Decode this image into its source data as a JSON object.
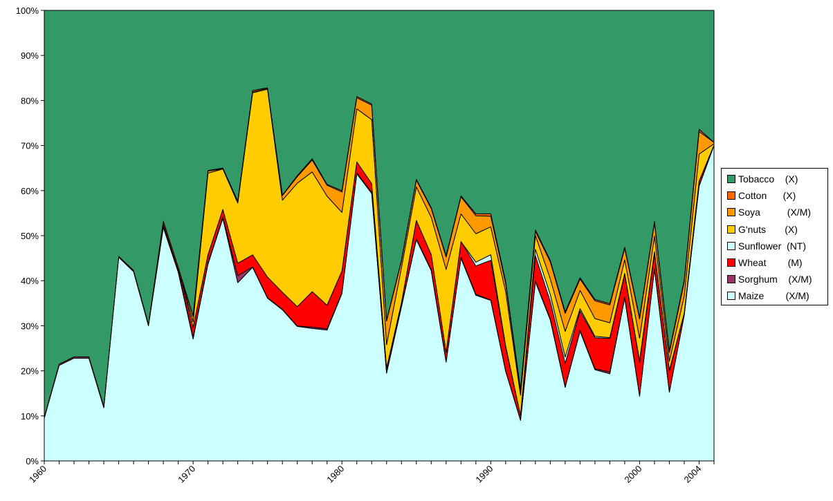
{
  "chart_data": {
    "type": "area",
    "stacked": "percent",
    "title": "",
    "xlabel": "",
    "ylabel": "",
    "ylim": [
      0,
      100
    ],
    "y_ticks": [
      "0%",
      "10%",
      "20%",
      "30%",
      "40%",
      "50%",
      "60%",
      "70%",
      "80%",
      "90%",
      "100%"
    ],
    "x_tick_labels": [
      {
        "year": 1960,
        "label": "1960"
      },
      {
        "year": 1970,
        "label": "1970"
      },
      {
        "year": 1980,
        "label": "1980"
      },
      {
        "year": 1990,
        "label": "1990"
      },
      {
        "year": 2000,
        "label": "2000"
      },
      {
        "year": 2004,
        "label": "2004"
      }
    ],
    "x": [
      1960,
      1961,
      1962,
      1963,
      1964,
      1965,
      1966,
      1967,
      1968,
      1969,
      1970,
      1971,
      1972,
      1973,
      1974,
      1975,
      1976,
      1977,
      1978,
      1979,
      1980,
      1981,
      1982,
      1983,
      1984,
      1985,
      1986,
      1987,
      1988,
      1989,
      1990,
      1991,
      1992,
      1993,
      1994,
      1995,
      1996,
      1997,
      1998,
      1999,
      2000,
      2001,
      2002,
      2003,
      2004,
      2005
    ],
    "series": [
      {
        "name": "Maize",
        "code": "(X/M)",
        "color": "#ccffff",
        "values": [
          9.5,
          21.2,
          22.8,
          22.8,
          11.8,
          45.2,
          42.0,
          30.0,
          51.8,
          41.8,
          22.0,
          43.5,
          54.0,
          38.5,
          41.8,
          35.5,
          32.8,
          30.5,
          31.0,
          30.0,
          38.5,
          65.0,
          46.0,
          20.5,
          33.0,
          49.5,
          43.5,
          21.5,
          47.5,
          35.0,
          34.5,
          19.0,
          9.0,
          42.5,
          31.5,
          14.3,
          28.5,
          20.5,
          19.5,
          36.0,
          14.4,
          43.5,
          15.3,
          31.0,
          61.0,
          70.0
        ]
      },
      {
        "name": "Sorghum",
        "code": "(X/M)",
        "color": "#993366",
        "values": [
          0.2,
          0.3,
          0.3,
          0.3,
          0.3,
          0.2,
          0.3,
          0.3,
          0.6,
          0.3,
          0.3,
          0.3,
          0.3,
          1.5,
          0.1,
          0.1,
          0.1,
          0.1,
          0.3,
          0.3,
          0.2,
          0.2,
          0.2,
          0.2,
          0.2,
          0.2,
          0.2,
          0.2,
          0.2,
          0.2,
          0.1,
          0.1,
          0.1,
          0.2,
          0.2,
          0.1,
          0.2,
          0.2,
          0.4,
          0.2,
          0.1,
          0.2,
          0.1,
          0.1,
          0.1,
          0.1
        ]
      },
      {
        "name": "Wheat",
        "code": "(M)",
        "color": "#ff0000",
        "values": [
          0.0,
          0.0,
          0.0,
          0.0,
          0.0,
          0.0,
          0.0,
          0.0,
          0.8,
          0.8,
          1.8,
          1.8,
          1.7,
          2.7,
          2.6,
          4.5,
          3.7,
          4.4,
          8.3,
          5.4,
          5.0,
          2.5,
          1.5,
          1.0,
          0.7,
          4.1,
          3.5,
          2.0,
          3.7,
          6.0,
          8.5,
          5.0,
          1.0,
          6.0,
          4.0,
          4.6,
          4.3,
          7.0,
          7.5,
          5.0,
          7.5,
          3.5,
          4.6,
          0.4,
          1.0,
          0.0
        ]
      },
      {
        "name": "Sunflower",
        "code": "(NT)",
        "color": "#ccffff",
        "values": [
          0.0,
          0.0,
          0.0,
          0.0,
          0.0,
          0.0,
          0.0,
          0.0,
          0.0,
          0.0,
          0.0,
          0.0,
          0.0,
          0.0,
          0.0,
          0.0,
          0.0,
          0.0,
          0.0,
          0.0,
          0.0,
          0.0,
          0.0,
          0.0,
          0.0,
          0.0,
          0.0,
          0.0,
          0.0,
          0.8,
          1.2,
          0.3,
          0.0,
          1.5,
          1.5,
          1.2,
          0.5,
          0.3,
          0.2,
          0.3,
          0.3,
          0.3,
          0.2,
          0.0,
          0.0,
          0.0
        ]
      },
      {
        "name": "G'nuts",
        "code": "(X)",
        "color": "#ffcc00",
        "values": [
          0.0,
          0.0,
          0.0,
          0.0,
          0.0,
          0.0,
          0.0,
          0.0,
          0.0,
          0.0,
          1.0,
          18.0,
          9.0,
          13.0,
          35.0,
          41.0,
          20.0,
          28.0,
          28.0,
          25.0,
          13.5,
          12.0,
          11.0,
          5.5,
          7.5,
          7.5,
          8.5,
          18.0,
          6.5,
          6.0,
          6.0,
          11.5,
          4.5,
          3.3,
          3.5,
          5.0,
          4.0,
          4.0,
          3.3,
          3.0,
          5.0,
          3.5,
          2.0,
          3.6,
          6.0,
          0.3
        ]
      },
      {
        "name": "Soya",
        "code": "(X/M)",
        "color": "#ff9900",
        "values": [
          0.0,
          0.0,
          0.0,
          0.0,
          0.0,
          0.0,
          0.0,
          0.0,
          0.0,
          0.0,
          1.0,
          0.5,
          0.0,
          0.2,
          0.2,
          0.2,
          1.0,
          1.5,
          2.8,
          2.5,
          4.7,
          2.5,
          2.5,
          5.5,
          1.4,
          1.5,
          2.0,
          2.7,
          4.0,
          3.8,
          2.3,
          1.7,
          1.0,
          1.0,
          3.8,
          3.5,
          2.5,
          4.0,
          4.0,
          2.5,
          4.3,
          3.0,
          2.0,
          3.0,
          5.0,
          0.3
        ]
      },
      {
        "name": "Cotton",
        "code": "(X)",
        "color": "#ff6600",
        "values": [
          0.0,
          0.0,
          0.0,
          0.0,
          0.0,
          0.0,
          0.0,
          0.0,
          0.0,
          0.0,
          0.1,
          0.1,
          0.2,
          0.2,
          0.3,
          0.1,
          0.1,
          0.2,
          0.3,
          0.2,
          0.3,
          0.3,
          0.2,
          0.2,
          0.2,
          0.2,
          0.2,
          0.3,
          0.2,
          0.4,
          0.5,
          0.4,
          0.3,
          0.3,
          0.3,
          0.3,
          0.3,
          0.3,
          0.3,
          0.3,
          0.3,
          0.3,
          0.3,
          0.4,
          0.5,
          0.0
        ]
      },
      {
        "name": "Tobacco",
        "code": "(X)",
        "color": "#339966",
        "values": [
          90.3,
          78.5,
          76.9,
          76.9,
          87.9,
          54.6,
          57.7,
          69.7,
          46.8,
          56.9,
          55.1,
          35.4,
          35.1,
          41.2,
          17.3,
          16.9,
          40.1,
          37.5,
          34.7,
          39.9,
          41.5,
          19.5,
          16.1,
          72.4,
          53.5,
          37.8,
          45.1,
          53.4,
          43.5,
          43.0,
          43.7,
          57.4,
          84.1,
          52.1,
          55.9,
          58.6,
          58.8,
          65.0,
          65.6,
          52.4,
          68.3,
          47.9,
          75.9,
          57.4,
          26.4,
          29.3
        ]
      }
    ],
    "legend": {
      "position": "right",
      "order": [
        "Tobacco",
        "Cotton",
        "Soya",
        "G'nuts",
        "Sunflower",
        "Wheat",
        "Sorghum",
        "Maize"
      ],
      "entries": {
        "Tobacco": "Tobacco    (X)",
        "Cotton": "Cotton      (X)",
        "Soya": "Soya          (X/M)",
        "G'nuts": "G'nuts       (X)",
        "Sunflower": "Sunflower  (NT)",
        "Wheat": "Wheat        (M)",
        "Sorghum": "Sorghum    (X/M)",
        "Maize": "Maize        (X/M)"
      }
    },
    "grid": false
  }
}
